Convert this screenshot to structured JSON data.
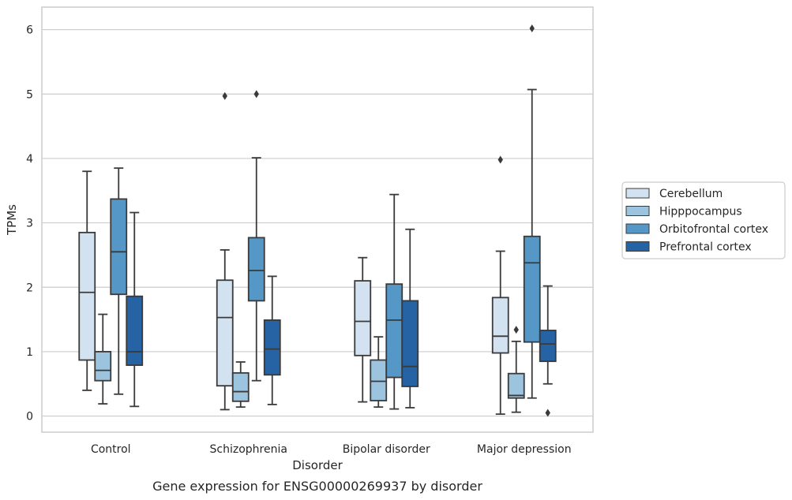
{
  "chart_data": {
    "type": "box",
    "xlabel": "Disorder",
    "ylabel": "TPMs",
    "caption": "Gene expression for ENSG00000269937 by disorder",
    "categories": [
      "Control",
      "Schizophrenia",
      "Bipolar disorder",
      "Major depression"
    ],
    "yticks": [
      "0",
      "1",
      "2",
      "3",
      "4",
      "5",
      "6"
    ],
    "ylim": [
      -0.25,
      6.35
    ],
    "grid": "horizontal",
    "legend_position": "right",
    "series": [
      {
        "name": "Cerebellum",
        "color": "#d3e2f1",
        "boxes": [
          {
            "whislo": 0.4,
            "q1": 0.87,
            "med": 1.92,
            "q3": 2.85,
            "whishi": 3.8,
            "fliers": []
          },
          {
            "whislo": 0.1,
            "q1": 0.47,
            "med": 1.53,
            "q3": 2.11,
            "whishi": 2.58,
            "fliers": [
              4.97
            ]
          },
          {
            "whislo": 0.22,
            "q1": 0.94,
            "med": 1.47,
            "q3": 2.1,
            "whishi": 2.46,
            "fliers": []
          },
          {
            "whislo": 0.03,
            "q1": 0.98,
            "med": 1.24,
            "q3": 1.84,
            "whishi": 2.56,
            "fliers": [
              3.98
            ]
          }
        ]
      },
      {
        "name": "Hipppocampus",
        "color": "#9dc4de",
        "boxes": [
          {
            "whislo": 0.19,
            "q1": 0.55,
            "med": 0.71,
            "q3": 1.0,
            "whishi": 1.58,
            "fliers": []
          },
          {
            "whislo": 0.14,
            "q1": 0.23,
            "med": 0.38,
            "q3": 0.67,
            "whishi": 0.84,
            "fliers": []
          },
          {
            "whislo": 0.14,
            "q1": 0.24,
            "med": 0.54,
            "q3": 0.87,
            "whishi": 1.23,
            "fliers": []
          },
          {
            "whislo": 0.06,
            "q1": 0.28,
            "med": 0.32,
            "q3": 0.66,
            "whishi": 1.16,
            "fliers": [
              1.34
            ]
          }
        ]
      },
      {
        "name": "Orbitofrontal cortex",
        "color": "#5597c6",
        "boxes": [
          {
            "whislo": 0.34,
            "q1": 1.89,
            "med": 2.55,
            "q3": 3.37,
            "whishi": 3.85,
            "fliers": []
          },
          {
            "whislo": 0.55,
            "q1": 1.79,
            "med": 2.26,
            "q3": 2.77,
            "whishi": 4.01,
            "fliers": [
              5.0
            ]
          },
          {
            "whislo": 0.11,
            "q1": 0.6,
            "med": 1.49,
            "q3": 2.05,
            "whishi": 3.44,
            "fliers": []
          },
          {
            "whislo": 0.28,
            "q1": 1.15,
            "med": 2.38,
            "q3": 2.79,
            "whishi": 5.07,
            "fliers": [
              6.02
            ]
          }
        ]
      },
      {
        "name": "Prefrontal cortex",
        "color": "#2563a5",
        "boxes": [
          {
            "whislo": 0.15,
            "q1": 0.79,
            "med": 1.0,
            "q3": 1.86,
            "whishi": 3.16,
            "fliers": []
          },
          {
            "whislo": 0.18,
            "q1": 0.64,
            "med": 1.04,
            "q3": 1.49,
            "whishi": 2.17,
            "fliers": []
          },
          {
            "whislo": 0.13,
            "q1": 0.46,
            "med": 0.77,
            "q3": 1.79,
            "whishi": 2.9,
            "fliers": []
          },
          {
            "whislo": 0.5,
            "q1": 0.85,
            "med": 1.12,
            "q3": 1.33,
            "whishi": 2.02,
            "fliers": [
              0.05
            ]
          }
        ]
      }
    ]
  }
}
